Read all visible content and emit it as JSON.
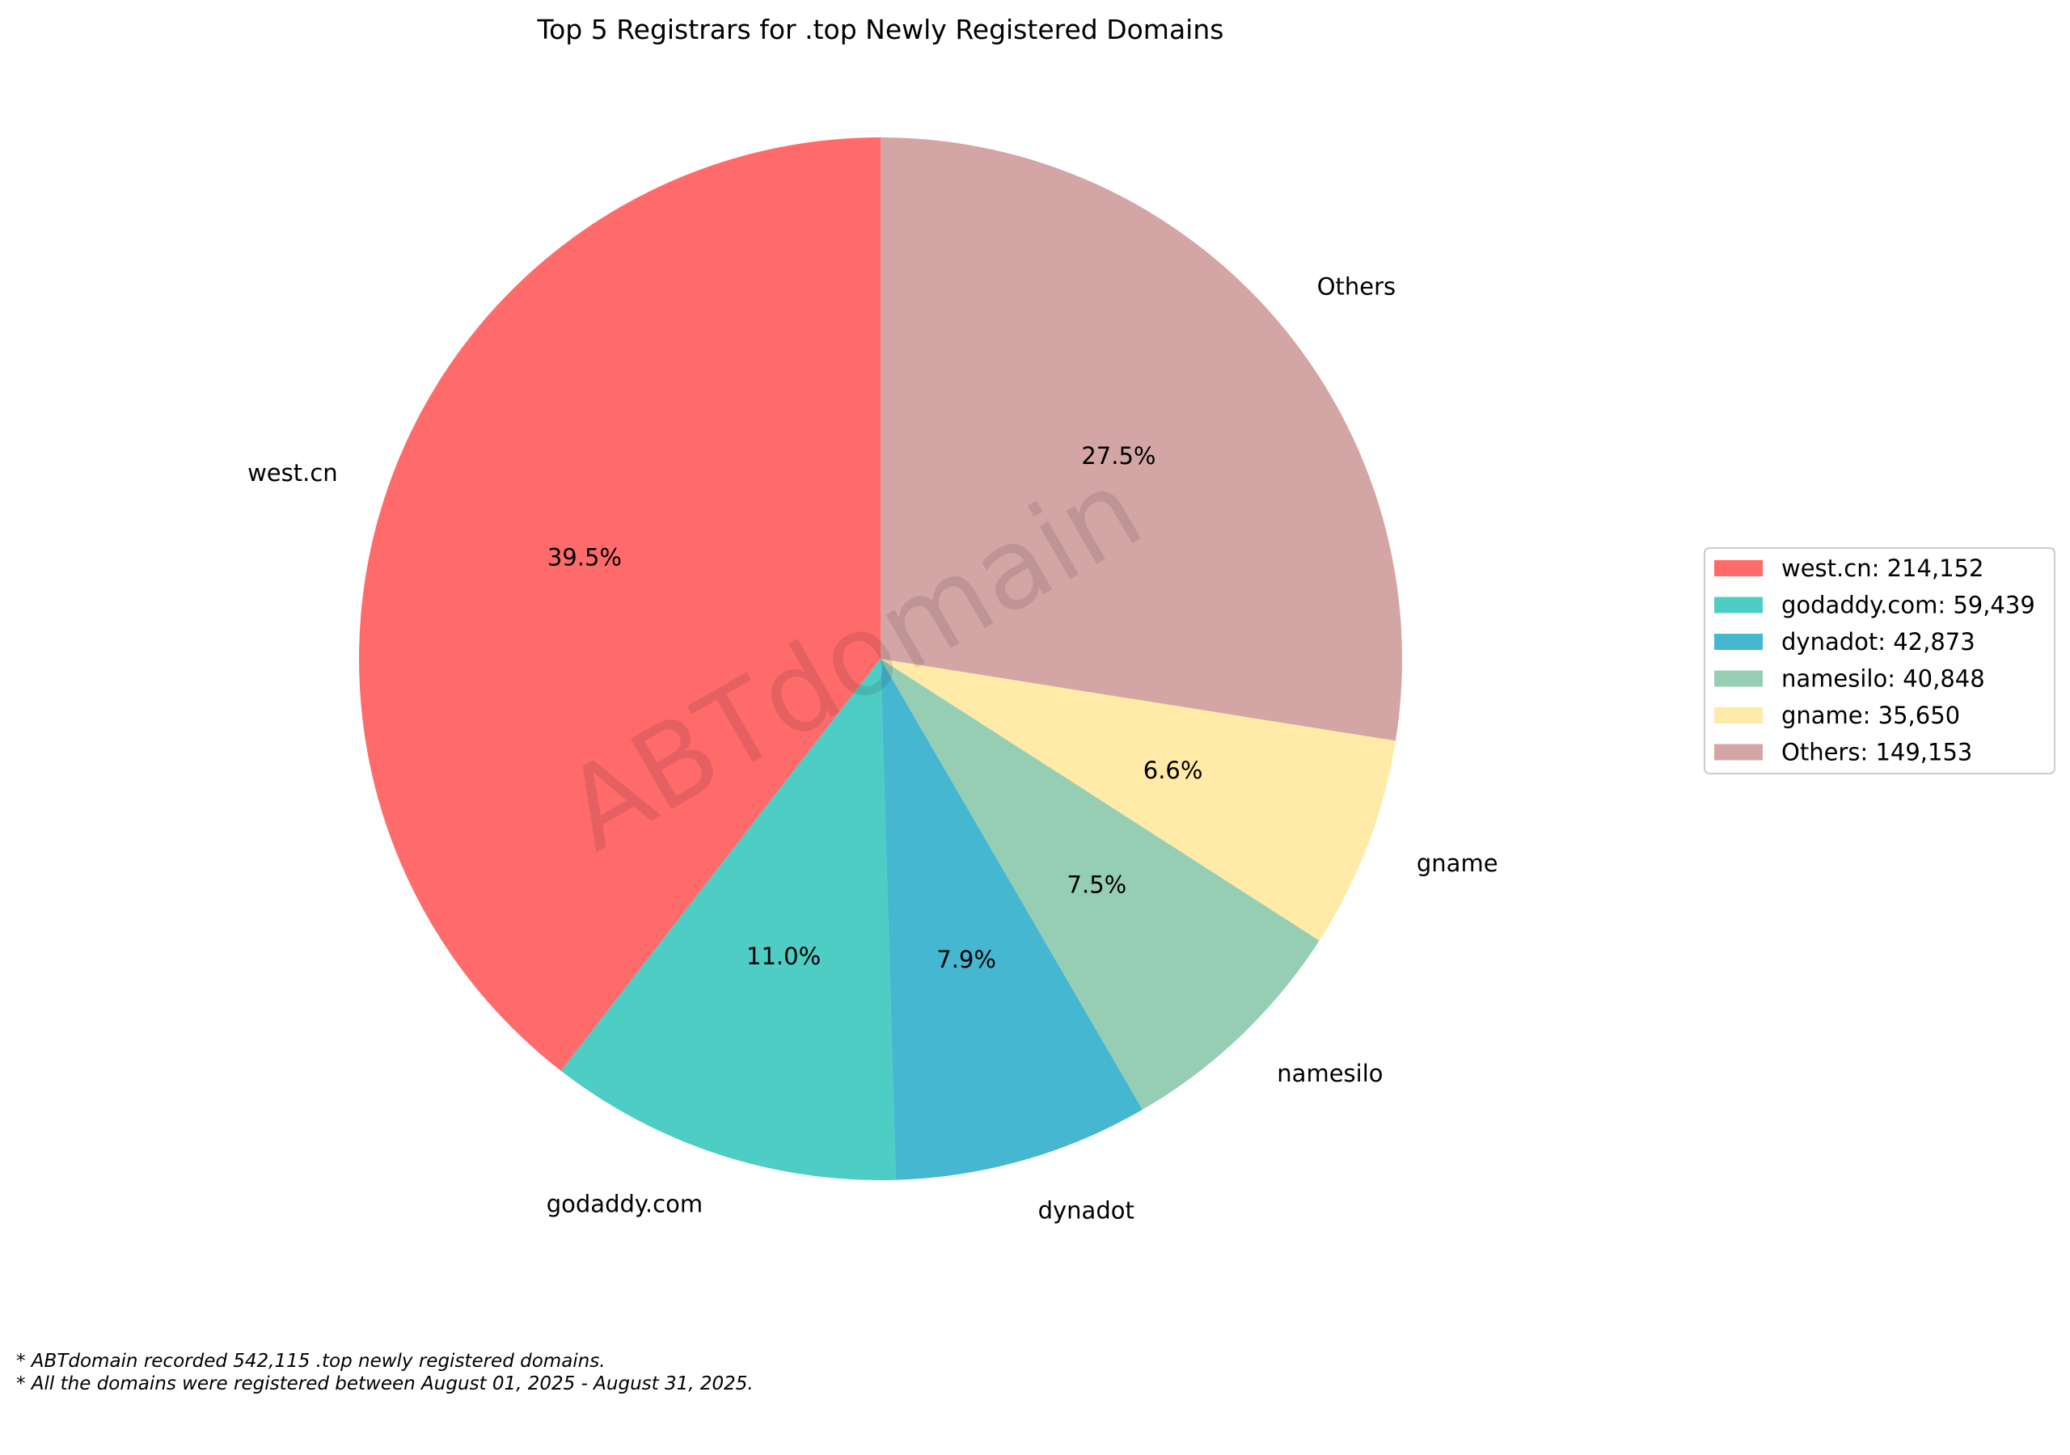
{
  "chart_data": {
    "type": "pie",
    "title": "Top 5 Registrars for .top Newly Registered Domains",
    "start_angle_deg": 90,
    "direction": "counterclockwise",
    "slices": [
      {
        "label": "west.cn",
        "value": 214152,
        "pct_label": "39.5%",
        "legend": "west.cn: 214,152",
        "color": "#ff6b6b"
      },
      {
        "label": "godaddy.com",
        "value": 59439,
        "pct_label": "11.0%",
        "legend": "godaddy.com: 59,439",
        "color": "#4ecdc4"
      },
      {
        "label": "dynadot",
        "value": 42873,
        "pct_label": "7.9%",
        "legend": "dynadot: 42,873",
        "color": "#45b7d1"
      },
      {
        "label": "namesilo",
        "value": 40848,
        "pct_label": "7.5%",
        "legend": "namesilo: 40,848",
        "color": "#96ceb4"
      },
      {
        "label": "gname",
        "value": 35650,
        "pct_label": "6.6%",
        "legend": "gname: 35,650",
        "color": "#ffeaa7"
      },
      {
        "label": "Others",
        "value": 149153,
        "pct_label": "27.5%",
        "legend": "Others: 149,153",
        "color": "#d4a5a5"
      }
    ],
    "legend_position": "right",
    "watermark": "ABTdomain"
  },
  "footnotes": [
    "* ABTdomain recorded 542,115 .top newly registered domains.",
    "* All the domains were registered between August 01, 2025 - August 31, 2025."
  ]
}
